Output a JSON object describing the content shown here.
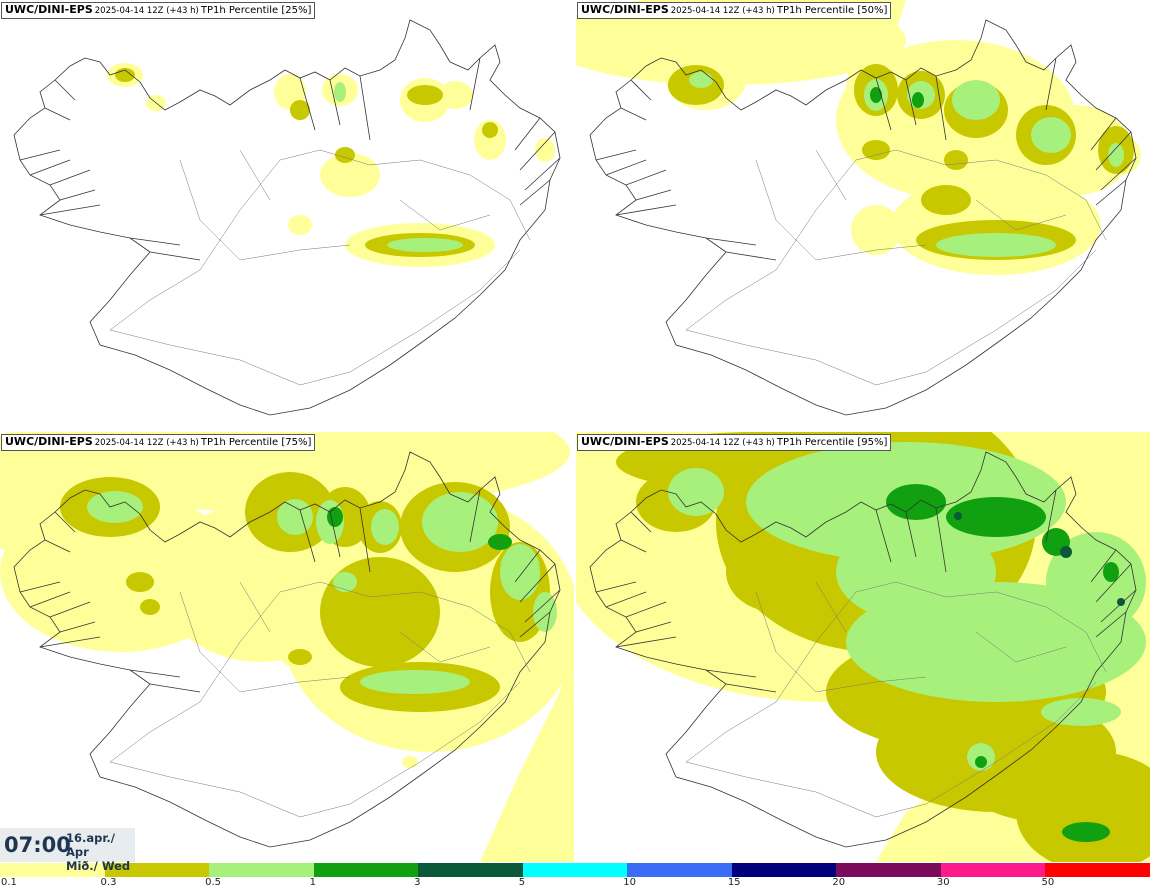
{
  "panels": [
    {
      "model": "UWC/DINI-EPS",
      "meta": "2025-04-14 12Z (+43 h)",
      "param": "TP1h Percentile [25%]"
    },
    {
      "model": "UWC/DINI-EPS",
      "meta": "2025-04-14 12Z (+43 h)",
      "param": "TP1h Percentile [50%]"
    },
    {
      "model": "UWC/DINI-EPS",
      "meta": "2025-04-14 12Z (+43 h)",
      "param": "TP1h Percentile [75%]"
    },
    {
      "model": "UWC/DINI-EPS",
      "meta": "2025-04-14 12Z (+43 h)",
      "param": "TP1h Percentile [95%]"
    }
  ],
  "valid_time": {
    "time": "07:00",
    "date_line1": "16.apr./ Apr",
    "date_line2": "Mið./ Wed"
  },
  "legend": {
    "colors": [
      "#ffff99",
      "#c8c800",
      "#a8f07c",
      "#10a010",
      "#0a5a3a",
      "#00ffff",
      "#3b6cf5",
      "#00007a",
      "#7a0a5a",
      "#ff1a8c",
      "#ff0000"
    ],
    "labels": [
      "0.1",
      "0.3",
      "0.5",
      "1",
      "3",
      "5",
      "10",
      "15",
      "20",
      "30",
      "50"
    ]
  }
}
